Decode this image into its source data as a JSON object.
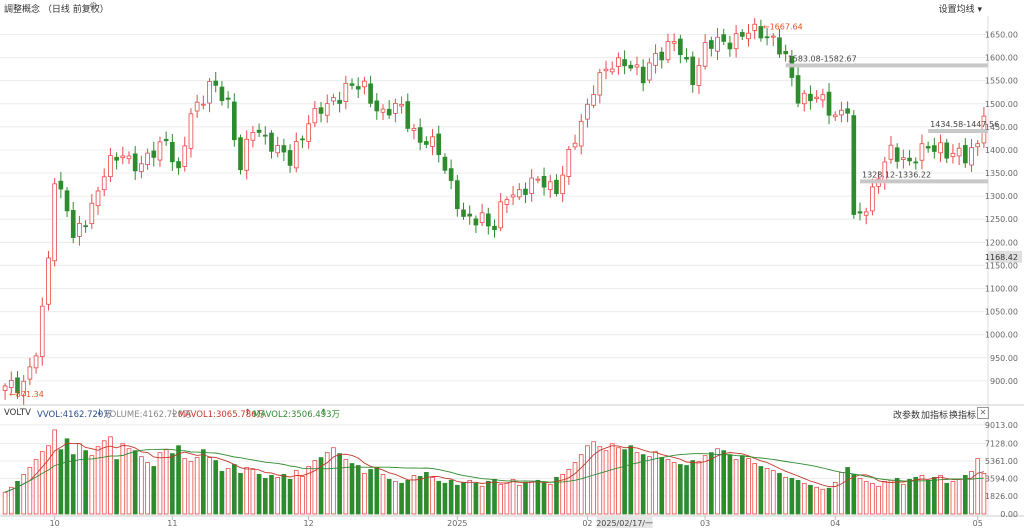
{
  "header": {
    "title": "調整概念 （日线 前复权）",
    "settings_label": "设置均线"
  },
  "indicator_bar": {
    "name": "VOLTV",
    "vvol": "VVOL:4162.720万",
    "volume": "VOLUME:4162.720万",
    "mavol1": "MAVOL1:3065.786万",
    "mavol2": "MAVOL2:3506.493万",
    "arrow_down": "↓",
    "arrow_up": "↑",
    "btn_params": "改参数",
    "btn_add": "加指标",
    "btn_switch": "换指标",
    "close": "✕"
  },
  "annotations": {
    "high_label": "←1667.64",
    "low_label": "←871.34",
    "current_price": "1168.42",
    "band1": "1583.08-1582.67",
    "band2": "1434.58-1447.56",
    "band3": "1328.12-1336.22",
    "date_tag": "2025/02/17/一"
  },
  "colors": {
    "up": "#e84a4a",
    "down": "#2e8b2e",
    "ma1": "#c0392b",
    "ma2": "#2e8b2e",
    "grid": "#ececec",
    "axis_text": "#666666",
    "high_label": "#e8501f"
  },
  "chart_data": [
    {
      "type": "candlestick",
      "ylim": [
        850,
        1690
      ],
      "y_ticks": [
        "1650.00",
        "1600.00",
        "1550.00",
        "1500.00",
        "1450.00",
        "1400.00",
        "1350.00",
        "1300.00",
        "1250.00",
        "1200.00",
        "1150.00",
        "1100.00",
        "1050.00",
        "1000.00",
        "950.00",
        "900.00"
      ],
      "y_tick_values": [
        1650,
        1600,
        1550,
        1500,
        1450,
        1400,
        1350,
        1300,
        1250,
        1200,
        1150,
        1100,
        1050,
        1000,
        950,
        900
      ],
      "x_labels": [
        "10",
        "11",
        "12",
        "2025",
        "02",
        "03",
        "04",
        "05"
      ],
      "x_label_index": [
        8,
        27,
        49,
        73,
        94,
        113,
        134,
        157
      ],
      "key_points": [
        [
          0,
          880
        ],
        [
          3,
          900
        ],
        [
          5,
          960
        ],
        [
          6,
          1040
        ],
        [
          7,
          1170
        ],
        [
          8,
          1340
        ],
        [
          9,
          1310
        ],
        [
          10,
          1280
        ],
        [
          11,
          1200
        ],
        [
          13,
          1250
        ],
        [
          16,
          1350
        ],
        [
          19,
          1395
        ],
        [
          22,
          1360
        ],
        [
          26,
          1430
        ],
        [
          28,
          1340
        ],
        [
          30,
          1480
        ],
        [
          33,
          1540
        ],
        [
          36,
          1500
        ],
        [
          38,
          1370
        ],
        [
          40,
          1440
        ],
        [
          43,
          1420
        ],
        [
          46,
          1370
        ],
        [
          49,
          1470
        ],
        [
          52,
          1490
        ],
        [
          55,
          1540
        ],
        [
          58,
          1530
        ],
        [
          61,
          1480
        ],
        [
          64,
          1490
        ],
        [
          67,
          1420
        ],
        [
          70,
          1400
        ],
        [
          72,
          1330
        ],
        [
          74,
          1240
        ],
        [
          77,
          1260
        ],
        [
          79,
          1230
        ],
        [
          81,
          1300
        ],
        [
          84,
          1320
        ],
        [
          87,
          1330
        ],
        [
          89,
          1320
        ],
        [
          91,
          1380
        ],
        [
          93,
          1460
        ],
        [
          95,
          1540
        ],
        [
          98,
          1580
        ],
        [
          100,
          1600
        ],
        [
          103,
          1550
        ],
        [
          105,
          1610
        ],
        [
          108,
          1630
        ],
        [
          111,
          1560
        ],
        [
          113,
          1620
        ],
        [
          117,
          1640
        ],
        [
          120,
          1650
        ],
        [
          122,
          1660
        ],
        [
          124,
          1640
        ],
        [
          126,
          1590
        ],
        [
          128,
          1520
        ],
        [
          131,
          1510
        ],
        [
          134,
          1480
        ],
        [
          136,
          1490
        ],
        [
          137,
          1240
        ],
        [
          139,
          1280
        ],
        [
          141,
          1350
        ],
        [
          143,
          1390
        ],
        [
          146,
          1380
        ],
        [
          149,
          1400
        ],
        [
          151,
          1410
        ],
        [
          153,
          1390
        ],
        [
          155,
          1380
        ],
        [
          157,
          1420
        ],
        [
          158,
          1490
        ],
        [
          159,
          1530
        ],
        [
          160,
          1520
        ]
      ]
    },
    {
      "type": "bar",
      "ylim": [
        0,
        9500
      ],
      "y_ticks": [
        "9013.00",
        "7128.00",
        "5361.00",
        "3594.00",
        "1826.00",
        "0.00"
      ],
      "y_tick_values": [
        9013,
        7128,
        5361,
        3594,
        1826,
        0
      ],
      "series": [
        {
          "name": "VOLUME",
          "values": [
            2200,
            2700,
            3300,
            4000,
            4700,
            5500,
            6300,
            6900,
            8500,
            6500,
            7600,
            6000,
            7100,
            6400,
            5900,
            6800,
            7400,
            7800,
            5500,
            7100,
            6600,
            6400,
            5800,
            5200,
            4800,
            6200,
            6500,
            6100,
            6900,
            5600,
            5300,
            5700,
            6500,
            5700,
            5400,
            4300,
            4600,
            5000,
            4100,
            4700,
            4500,
            4000,
            3600,
            3900,
            3700,
            4000,
            3500,
            4400,
            3800,
            4800,
            5400,
            5700,
            6200,
            6700,
            6100,
            5500,
            5100,
            4900,
            4100,
            4500,
            4700,
            4000,
            3500,
            3300,
            3100,
            3400,
            3900,
            3800,
            4200,
            3700,
            3300,
            3100,
            3400,
            2900,
            3200,
            3400,
            3100,
            2800,
            3300,
            3500,
            3000,
            3100,
            3500,
            2900,
            3200,
            3300,
            3400,
            3100,
            3000,
            3700,
            4000,
            4500,
            5200,
            6000,
            6900,
            7300,
            6800,
            6400,
            7100,
            6700,
            6500,
            6900,
            6200,
            6000,
            5800,
            6300,
            5700,
            5500,
            5200,
            5000,
            4900,
            5400,
            5300,
            5900,
            6200,
            6600,
            6400,
            6000,
            5500,
            5900,
            5600,
            5100,
            4800,
            4600,
            4400,
            4100,
            3700,
            3600,
            3400,
            3100,
            2900,
            2700,
            2500,
            2600,
            3200,
            4200,
            4700,
            4000,
            3600,
            3300,
            3100,
            2800,
            3300,
            3400,
            3600,
            3000,
            3500,
            3700,
            3900,
            3400,
            3700,
            3900,
            3100,
            3300,
            3500,
            3900,
            4300,
            5600,
            4100
          ]
        },
        {
          "name": "MAVOL1",
          "values": []
        },
        {
          "name": "MAVOL2",
          "values": []
        }
      ]
    }
  ]
}
